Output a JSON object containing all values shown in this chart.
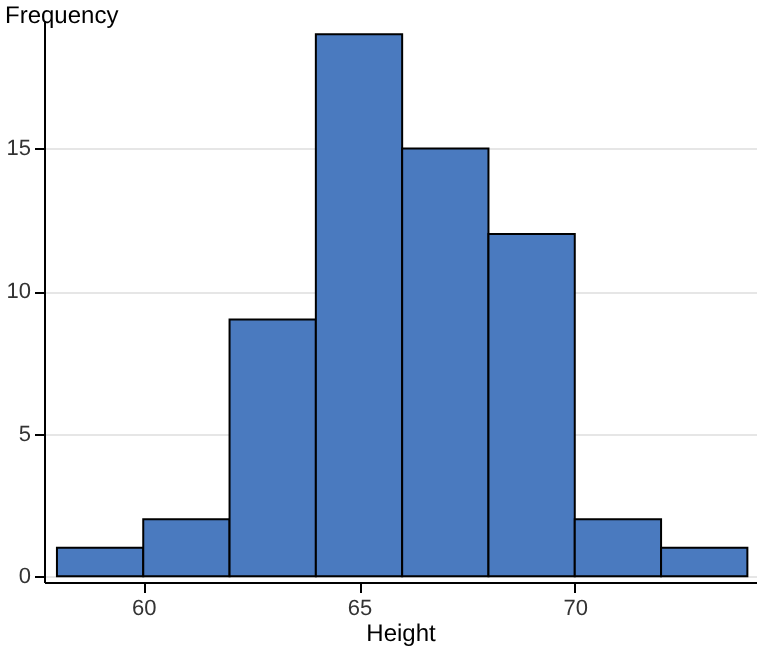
{
  "chart_data": {
    "type": "histogram",
    "xlabel": "Height",
    "ylabel": "Frequency",
    "bins": [
      58,
      60,
      62,
      64,
      66,
      68,
      70,
      72,
      74
    ],
    "values": [
      1,
      2,
      9,
      19,
      15,
      12,
      2,
      1
    ],
    "color": "#4a7abf",
    "xlim": [
      57.7,
      74.2
    ],
    "xticks": [
      60,
      65,
      70
    ],
    "ylim": [
      -0.2,
      19.5
    ],
    "yticks": [
      0,
      5,
      10,
      15
    ],
    "grid": "y"
  }
}
